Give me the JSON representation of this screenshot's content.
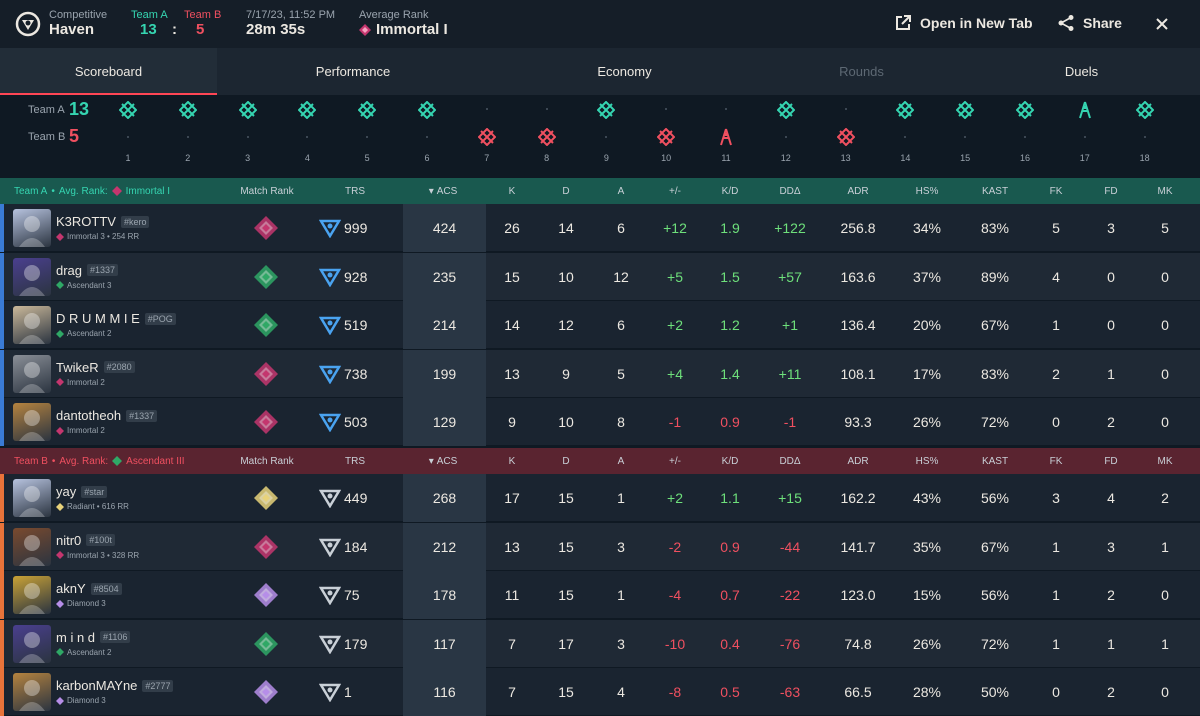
{
  "header": {
    "mode": "Competitive",
    "map": "Haven",
    "team_a_label": "Team A",
    "team_b_label": "Team B",
    "team_a_score": "13",
    "separator": ":",
    "team_b_score": "5",
    "date": "7/17/23, 11:52 PM",
    "duration": "28m 35s",
    "avg_rank_label": "Average Rank",
    "avg_rank_value": "Immortal I",
    "open_tab_label": "Open in New Tab",
    "share_label": "Share"
  },
  "tabs": [
    {
      "label": "Scoreboard",
      "state": "active"
    },
    {
      "label": "Performance",
      "state": "normal"
    },
    {
      "label": "Economy",
      "state": "normal"
    },
    {
      "label": "Rounds",
      "state": "disabled"
    },
    {
      "label": "Duels",
      "state": "normal"
    }
  ],
  "timeline": {
    "team_a_label": "Team A",
    "team_a_score": "13",
    "team_b_label": "Team B",
    "team_b_score": "5",
    "rounds": [
      {
        "n": "1",
        "winner": "A",
        "icon": "elimination-icon"
      },
      {
        "n": "2",
        "winner": "A",
        "icon": "elimination-icon"
      },
      {
        "n": "3",
        "winner": "A",
        "icon": "elimination-icon"
      },
      {
        "n": "4",
        "winner": "A",
        "icon": "elimination-icon"
      },
      {
        "n": "5",
        "winner": "A",
        "icon": "elimination-icon"
      },
      {
        "n": "6",
        "winner": "A",
        "icon": "elimination-icon"
      },
      {
        "n": "7",
        "winner": "B",
        "icon": "elimination-icon"
      },
      {
        "n": "8",
        "winner": "B",
        "icon": "elimination-icon"
      },
      {
        "n": "9",
        "winner": "A",
        "icon": "elimination-icon"
      },
      {
        "n": "10",
        "winner": "B",
        "icon": "elimination-icon"
      },
      {
        "n": "11",
        "winner": "B",
        "icon": "defuse-icon"
      },
      {
        "n": "12",
        "winner": "A",
        "icon": "elimination-icon"
      },
      {
        "n": "13",
        "winner": "B",
        "icon": "elimination-icon"
      },
      {
        "n": "14",
        "winner": "A",
        "icon": "elimination-icon"
      },
      {
        "n": "15",
        "winner": "A",
        "icon": "elimination-icon"
      },
      {
        "n": "16",
        "winner": "A",
        "icon": "elimination-icon"
      },
      {
        "n": "17",
        "winner": "A",
        "icon": "defuse-icon"
      },
      {
        "n": "18",
        "winner": "A",
        "icon": "elimination-icon"
      }
    ]
  },
  "columns": {
    "match_rank": "Match Rank",
    "trs": "TRS",
    "acs": "ACS",
    "k": "K",
    "d": "D",
    "a": "A",
    "pm": "+/-",
    "kd": "K/D",
    "dd": "DDΔ",
    "adr": "ADR",
    "hs": "HS%",
    "kast": "KAST",
    "fk": "FK",
    "fd": "FD",
    "mk": "MK"
  },
  "team_a": {
    "name": "Team A",
    "avg_label": "Avg. Rank:",
    "avg_rank": "Immortal I",
    "color": "#35d5b1",
    "players": [
      {
        "name": "K3ROTTV",
        "tag": "#kero",
        "rank": "Immortal 3 • 254 RR",
        "rank_color": "#c4366e",
        "trs": "999",
        "acs": "424",
        "k": "26",
        "d": "14",
        "a": "6",
        "pm": "+12",
        "kd": "1.9",
        "dd": "+122",
        "adr": "256.8",
        "hs": "34%",
        "kast": "83%",
        "fk": "5",
        "fd": "3",
        "mk": "5",
        "side": "#3a7bd5",
        "avatar": "#b7c3df"
      },
      {
        "name": "drag",
        "tag": "#1337",
        "rank": "Ascendant 3",
        "rank_color": "#2fa866",
        "trs": "928",
        "acs": "235",
        "k": "15",
        "d": "10",
        "a": "12",
        "pm": "+5",
        "kd": "1.5",
        "dd": "+57",
        "adr": "163.6",
        "hs": "37%",
        "kast": "89%",
        "fk": "4",
        "fd": "0",
        "mk": "0",
        "side": "#3a7bd5",
        "avatar": "#4a3f8f"
      },
      {
        "name": "D R U M M I E",
        "tag": "#POG",
        "rank": "Ascendant 2",
        "rank_color": "#2fa866",
        "trs": "519",
        "acs": "214",
        "k": "14",
        "d": "12",
        "a": "6",
        "pm": "+2",
        "kd": "1.2",
        "dd": "+1",
        "adr": "136.4",
        "hs": "20%",
        "kast": "67%",
        "fk": "1",
        "fd": "0",
        "mk": "0",
        "side": "#3a7bd5",
        "avatar": "#cbb99a"
      },
      {
        "name": "TwikeR",
        "tag": "#2080",
        "rank": "Immortal 2",
        "rank_color": "#c4366e",
        "trs": "738",
        "acs": "199",
        "k": "13",
        "d": "9",
        "a": "5",
        "pm": "+4",
        "kd": "1.4",
        "dd": "+11",
        "adr": "108.1",
        "hs": "17%",
        "kast": "83%",
        "fk": "2",
        "fd": "1",
        "mk": "0",
        "side": "#3a7bd5",
        "avatar": "#8a8f97"
      },
      {
        "name": "dantotheoh",
        "tag": "#1337",
        "rank": "Immortal 2",
        "rank_color": "#c4366e",
        "trs": "503",
        "acs": "129",
        "k": "9",
        "d": "10",
        "a": "8",
        "pm": "-1",
        "kd": "0.9",
        "dd": "-1",
        "adr": "93.3",
        "hs": "26%",
        "kast": "72%",
        "fk": "0",
        "fd": "2",
        "mk": "0",
        "side": "#3a7bd5",
        "avatar": "#b5833f"
      }
    ]
  },
  "team_b": {
    "name": "Team B",
    "avg_label": "Avg. Rank:",
    "avg_rank": "Ascendant III",
    "color": "#f05060",
    "players": [
      {
        "name": "yay",
        "tag": "#star",
        "rank": "Radiant • 616 RR",
        "rank_color": "#e8d27a",
        "trs": "449",
        "acs": "268",
        "k": "17",
        "d": "15",
        "a": "1",
        "pm": "+2",
        "kd": "1.1",
        "dd": "+15",
        "adr": "162.2",
        "hs": "43%",
        "kast": "56%",
        "fk": "3",
        "fd": "4",
        "mk": "2",
        "side": "#e8733a",
        "avatar": "#b7c3df"
      },
      {
        "name": "nitr0",
        "tag": "#100t",
        "rank": "Immortal 3 • 328 RR",
        "rank_color": "#c4366e",
        "trs": "184",
        "acs": "212",
        "k": "13",
        "d": "15",
        "a": "3",
        "pm": "-2",
        "kd": "0.9",
        "dd": "-44",
        "adr": "141.7",
        "hs": "35%",
        "kast": "67%",
        "fk": "1",
        "fd": "3",
        "mk": "1",
        "side": "#e8733a",
        "avatar": "#7a4a2e"
      },
      {
        "name": "aknY",
        "tag": "#8504",
        "rank": "Diamond 3",
        "rank_color": "#b68ee8",
        "trs": "75",
        "acs": "178",
        "k": "11",
        "d": "15",
        "a": "1",
        "pm": "-4",
        "kd": "0.7",
        "dd": "-22",
        "adr": "123.0",
        "hs": "15%",
        "kast": "56%",
        "fk": "1",
        "fd": "2",
        "mk": "0",
        "side": "#e8733a",
        "avatar": "#c9a236"
      },
      {
        "name": "m i n d",
        "tag": "#1106",
        "rank": "Ascendant 2",
        "rank_color": "#2fa866",
        "trs": "179",
        "acs": "117",
        "k": "7",
        "d": "17",
        "a": "3",
        "pm": "-10",
        "kd": "0.4",
        "dd": "-76",
        "adr": "74.8",
        "hs": "26%",
        "kast": "72%",
        "fk": "1",
        "fd": "1",
        "mk": "1",
        "side": "#e8733a",
        "avatar": "#4a3f8f"
      },
      {
        "name": "karbonMAYne",
        "tag": "#2777",
        "rank": "Diamond 3",
        "rank_color": "#b68ee8",
        "trs": "1",
        "acs": "116",
        "k": "7",
        "d": "15",
        "a": "4",
        "pm": "-8",
        "kd": "0.5",
        "dd": "-63",
        "adr": "66.5",
        "hs": "28%",
        "kast": "50%",
        "fk": "0",
        "fd": "2",
        "mk": "0",
        "side": "#e8733a",
        "avatar": "#b5833f"
      }
    ]
  }
}
